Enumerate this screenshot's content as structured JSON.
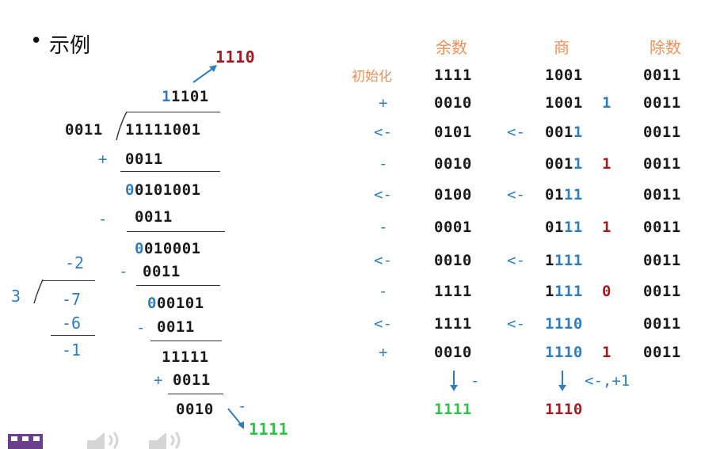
{
  "slide": {
    "bullet": "•",
    "title": "示例"
  },
  "long_division": {
    "divisor": "0011",
    "dividend": "11111001",
    "quotient_first": "1",
    "quotient_rest": "1101",
    "corrected_quotient": "1110",
    "final_remainder": "1111",
    "final_minus": "-",
    "steps": [
      {
        "op": "+",
        "value": "0011"
      },
      {
        "prefix": "0",
        "rest": "0101001"
      },
      {
        "op": "-",
        "value": "0011"
      },
      {
        "prefix": "0",
        "rest": "010001"
      },
      {
        "op": "-",
        "value": "0011"
      },
      {
        "prefix": "0",
        "rest": "00101"
      },
      {
        "op": "-",
        "value": "0011"
      },
      {
        "value": "11111"
      },
      {
        "op": "+",
        "value": "0011"
      },
      {
        "value": "0010"
      }
    ]
  },
  "decimal_example": {
    "divisor": "3",
    "quotient": "-2",
    "dividend": "-7",
    "product": "-6",
    "remainder": "-1"
  },
  "table": {
    "headers": {
      "remainder": "余数",
      "quotient": "商",
      "divisor": "除数"
    },
    "init_label": "初始化",
    "rows": [
      {
        "op": "",
        "rem": "1111",
        "qop": "",
        "q_black": "1001",
        "q_blue": "",
        "q_bit": "",
        "div": "0011"
      },
      {
        "op": "+",
        "rem": "0010",
        "qop": "",
        "q_black": "1001",
        "q_blue": "",
        "q_bit": "1",
        "div": "0011"
      },
      {
        "op": "<-",
        "rem": "0101",
        "qop": "<-",
        "q_black": "001",
        "q_blue": "1",
        "q_bit": "",
        "div": "0011"
      },
      {
        "op": "-",
        "rem": "0010",
        "qop": "",
        "q_black": "001",
        "q_blue": "1",
        "q_bit": "1",
        "div": "0011"
      },
      {
        "op": "<-",
        "rem": "0100",
        "qop": "<-",
        "q_black": "01",
        "q_blue": "11",
        "q_bit": "",
        "div": "0011"
      },
      {
        "op": "-",
        "rem": "0001",
        "qop": "",
        "q_black": "01",
        "q_blue": "11",
        "q_bit": "1",
        "div": "0011"
      },
      {
        "op": "<-",
        "rem": "0010",
        "qop": "<-",
        "q_black": "1",
        "q_blue": "111",
        "q_bit": "",
        "div": "0011"
      },
      {
        "op": "-",
        "rem": "1111",
        "qop": "",
        "q_black": "1",
        "q_blue": "111",
        "q_bit": "0",
        "div": "0011"
      },
      {
        "op": "<-",
        "rem": "1111",
        "qop": "<-",
        "q_black": "",
        "q_blue": "1110",
        "q_bit": "",
        "div": "0011"
      },
      {
        "op": "+",
        "rem": "0010",
        "qop": "",
        "q_black": "",
        "q_blue": "1110",
        "q_bit": "1",
        "div": "0011"
      }
    ],
    "final_rem_op": "-",
    "final_q_op": "<-,+1",
    "final_remainder": "1111",
    "final_quotient": "1110"
  },
  "icons": {
    "logo": "university-crest-icon",
    "audio1": "speaker-icon",
    "audio2": "speaker-icon"
  }
}
